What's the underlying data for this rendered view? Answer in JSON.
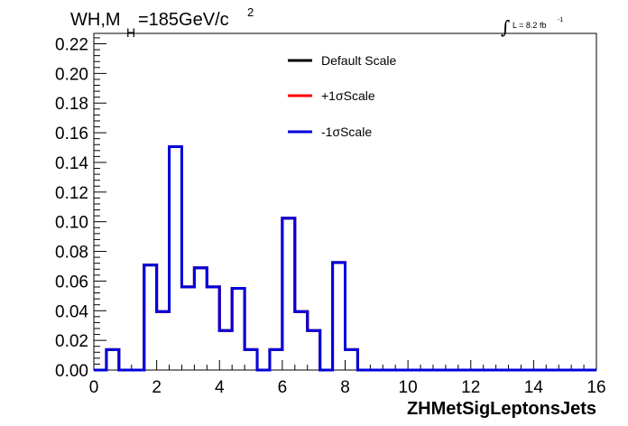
{
  "chart_data": {
    "type": "histogram",
    "title": {
      "main": "WH,M",
      "subscript": "H",
      "value": "=185GeV/c",
      "superscript": "2"
    },
    "luminosity": {
      "integral_symbol": "∫",
      "text": "L = 8.2 fb",
      "superscript": "-1"
    },
    "xlabel": "ZHMetSigLeptonsJets",
    "ylabel": "",
    "xlim": [
      0,
      16
    ],
    "ylim": [
      0,
      0.227
    ],
    "x_ticks": [
      "0",
      "2",
      "4",
      "6",
      "8",
      "10",
      "12",
      "14",
      "16"
    ],
    "y_ticks": [
      "0.00",
      "0.02",
      "0.04",
      "0.06",
      "0.08",
      "0.10",
      "0.12",
      "0.14",
      "0.16",
      "0.18",
      "0.20",
      "0.22"
    ],
    "x_tick_values": [
      0,
      2,
      4,
      6,
      8,
      10,
      12,
      14,
      16
    ],
    "y_tick_values": [
      0,
      0.02,
      0.04,
      0.06,
      0.08,
      0.1,
      0.12,
      0.14,
      0.16,
      0.18,
      0.2,
      0.22
    ],
    "bin_width": 0.4,
    "bin_edges_start": 0,
    "series": [
      {
        "name": "Default Scale",
        "color": "#000000",
        "values": [
          0,
          0.0138,
          0,
          0,
          0.0708,
          0.0394,
          0.1506,
          0.0561,
          0.0689,
          0.0561,
          0.0266,
          0.0551,
          0.0138,
          0,
          0.0138,
          0.1024,
          0.0394,
          0.0266,
          0,
          0.0725,
          0.0138,
          0,
          0,
          0,
          0,
          0,
          0,
          0,
          0,
          0,
          0,
          0,
          0,
          0,
          0,
          0,
          0,
          0,
          0,
          0
        ]
      },
      {
        "name": "+1σScale",
        "color": "#ff0000",
        "values": [
          0,
          0.0138,
          0,
          0,
          0.0708,
          0.0394,
          0.1506,
          0.0561,
          0.0689,
          0.0561,
          0.0266,
          0.0551,
          0.0138,
          0,
          0.0138,
          0.1024,
          0.0394,
          0.0266,
          0,
          0.0725,
          0.0138,
          0,
          0,
          0,
          0,
          0,
          0,
          0,
          0,
          0,
          0,
          0,
          0,
          0,
          0,
          0,
          0,
          0,
          0,
          0
        ]
      },
      {
        "name": "-1σScale",
        "color": "#0000dd",
        "values": [
          0,
          0.0138,
          0,
          0,
          0.0708,
          0.0394,
          0.1506,
          0.0561,
          0.0689,
          0.0561,
          0.0266,
          0.0551,
          0.0138,
          0,
          0.0138,
          0.1024,
          0.0394,
          0.0266,
          0,
          0.0725,
          0.0138,
          0,
          0,
          0,
          0,
          0,
          0,
          0,
          0,
          0,
          0,
          0,
          0,
          0,
          0,
          0,
          0,
          0,
          0,
          0
        ]
      }
    ],
    "legend": {
      "position": "top-center",
      "entries": [
        "Default Scale",
        "+1σScale",
        "-1σScale"
      ]
    },
    "grid": false
  }
}
